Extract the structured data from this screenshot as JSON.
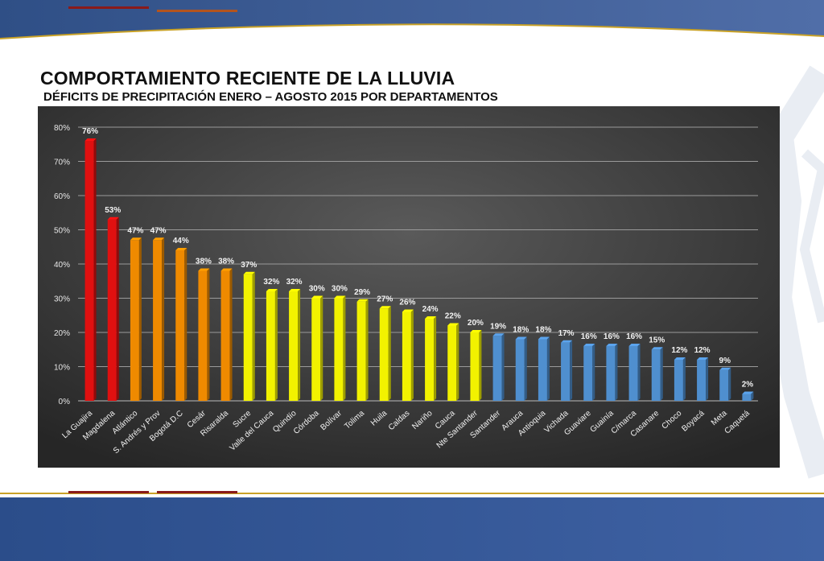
{
  "slide": {
    "title": "COMPORTAMIENTO RECIENTE DE LA LLUVIA",
    "subtitle": "DÉFICITS DE PRECIPITACIÓN ENERO – AGOSTO 2015 POR DEPARTAMENTOS"
  },
  "colors": {
    "red": "#e01010",
    "orange": "#ef8a00",
    "yellow": "#f2f200",
    "blue": "#4f8fcf",
    "panel_background": "#3c3c3c",
    "header_blue": "#3f5f98"
  },
  "chart_data": {
    "type": "bar",
    "title": "",
    "xlabel": "",
    "ylabel": "",
    "ylim": [
      0,
      80
    ],
    "y_ticks": [
      "0%",
      "10%",
      "20%",
      "30%",
      "40%",
      "50%",
      "60%",
      "70%",
      "80%"
    ],
    "grid": true,
    "legend": "none",
    "categories": [
      "La Guajira",
      "Magdalena",
      "Atlántico",
      "S. Andrés y Prov",
      "Bogotá D.C",
      "Cesár",
      "Risaralda",
      "Sucre",
      "Valle del Cauca",
      "Quindío",
      "Córdoba",
      "Bolívar",
      "Tolima",
      "Huila",
      "Caldas",
      "Nariño",
      "Cauca",
      "Nte Santander",
      "Santander",
      "Arauca",
      "Antioquia",
      "Vichada",
      "Guaviare",
      "Guainía",
      "C/marca",
      "Casanare",
      "Choco",
      "Boyacá",
      "Meta",
      "Caquetá"
    ],
    "values": [
      76,
      53,
      47,
      47,
      44,
      38,
      38,
      37,
      32,
      32,
      30,
      30,
      29,
      27,
      26,
      24,
      22,
      20,
      19,
      18,
      18,
      17,
      16,
      16,
      16,
      15,
      12,
      12,
      9,
      2
    ],
    "labels": [
      "76%",
      "53%",
      "47%",
      "47%",
      "44%",
      "38%",
      "38%",
      "37%",
      "32%",
      "32%",
      "30%",
      "30%",
      "29%",
      "27%",
      "26%",
      "24%",
      "22%",
      "20%",
      "19%",
      "18%",
      "18%",
      "17%",
      "16%",
      "16%",
      "16%",
      "15%",
      "12%",
      "12%",
      "9%",
      "2%"
    ],
    "bar_color_groups": [
      "red",
      "red",
      "orange",
      "orange",
      "orange",
      "orange",
      "orange",
      "yellow",
      "yellow",
      "yellow",
      "yellow",
      "yellow",
      "yellow",
      "yellow",
      "yellow",
      "yellow",
      "yellow",
      "yellow",
      "blue",
      "blue",
      "blue",
      "blue",
      "blue",
      "blue",
      "blue",
      "blue",
      "blue",
      "blue",
      "blue",
      "blue"
    ]
  }
}
